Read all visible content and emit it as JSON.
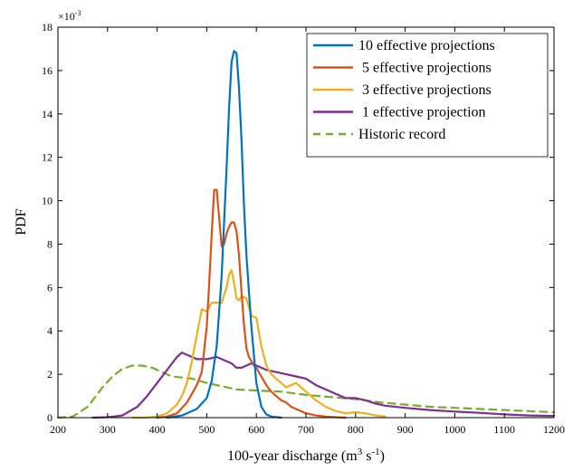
{
  "chart_data": {
    "type": "line",
    "xlabel": "100-year discharge (m",
    "xlabel_sup1": "3",
    "xlabel_mid": " s",
    "xlabel_sup2": "-1",
    "xlabel_end": ")",
    "ylabel": "PDF",
    "y_multiplier": "×10",
    "y_multiplier_exp": "-3",
    "xlim": [
      200,
      1200
    ],
    "ylim": [
      0,
      18
    ],
    "xticks": [
      "200",
      "300",
      "400",
      "500",
      "600",
      "700",
      "800",
      "900",
      "1000",
      "1100",
      "1200"
    ],
    "yticks": [
      "0",
      "2",
      "4",
      "6",
      "8",
      "10",
      "12",
      "14",
      "16",
      "18"
    ],
    "grid": false,
    "legend_position": "top-right",
    "series": [
      {
        "name": "10 effective projections",
        "color": "#0072BD",
        "style": "solid",
        "x": [
          420,
          450,
          480,
          500,
          510,
          520,
          530,
          540,
          545,
          550,
          555,
          560,
          565,
          570,
          575,
          580,
          590,
          600,
          610,
          620,
          630,
          650
        ],
        "y": [
          0,
          0.1,
          0.4,
          0.9,
          1.7,
          3.3,
          6.5,
          11.5,
          14.3,
          16.4,
          16.9,
          16.8,
          15.2,
          12.8,
          9.8,
          7.5,
          4.2,
          1.6,
          0.5,
          0.15,
          0.05,
          0
        ]
      },
      {
        "name": " 5 effective projections",
        "color": "#D95319",
        "style": "solid",
        "x": [
          400,
          420,
          440,
          460,
          470,
          480,
          490,
          500,
          505,
          510,
          515,
          520,
          525,
          530,
          535,
          540,
          545,
          550,
          555,
          560,
          565,
          570,
          575,
          580,
          585,
          590,
          595,
          600,
          610,
          620,
          630,
          640,
          650,
          660,
          670,
          680,
          690,
          700,
          720,
          740,
          760,
          780
        ],
        "y": [
          0,
          0.05,
          0.2,
          0.7,
          1.1,
          1.5,
          2.1,
          4.2,
          6.2,
          8.5,
          10.5,
          10.5,
          9.2,
          7.9,
          8.0,
          8.5,
          8.8,
          9.0,
          9.0,
          8.6,
          7.5,
          5.8,
          4.3,
          3.2,
          2.8,
          2.6,
          2.4,
          2.3,
          1.9,
          1.5,
          1.2,
          1.0,
          0.8,
          0.7,
          0.5,
          0.4,
          0.3,
          0.2,
          0.1,
          0.05,
          0.02,
          0
        ]
      },
      {
        "name": " 3 effective projections",
        "color": "#EDB120",
        "style": "solid",
        "x": [
          350,
          380,
          400,
          420,
          440,
          450,
          460,
          470,
          480,
          490,
          500,
          510,
          520,
          530,
          540,
          545,
          550,
          555,
          560,
          565,
          570,
          580,
          590,
          600,
          610,
          620,
          630,
          640,
          660,
          680,
          700,
          720,
          740,
          760,
          780,
          800,
          820,
          840,
          860
        ],
        "y": [
          0,
          0.01,
          0.05,
          0.2,
          0.6,
          1.0,
          1.6,
          2.6,
          3.8,
          5.0,
          4.9,
          5.3,
          5.3,
          5.3,
          6.0,
          6.6,
          6.8,
          6.2,
          5.5,
          5.4,
          5.6,
          5.5,
          4.7,
          4.6,
          3.3,
          2.4,
          2.0,
          1.8,
          1.4,
          1.6,
          1.2,
          0.8,
          0.5,
          0.3,
          0.2,
          0.25,
          0.2,
          0.1,
          0.05
        ]
      },
      {
        "name": " 1 effective projection",
        "color": "#7E2F8E",
        "style": "solid",
        "x": [
          270,
          300,
          330,
          360,
          380,
          400,
          420,
          440,
          450,
          460,
          470,
          480,
          500,
          520,
          540,
          550,
          560,
          570,
          580,
          590,
          600,
          620,
          640,
          660,
          680,
          700,
          720,
          740,
          760,
          780,
          800,
          820,
          840,
          860,
          900,
          950,
          1000,
          1050,
          1100,
          1150,
          1200
        ],
        "y": [
          0,
          0.02,
          0.1,
          0.5,
          1.0,
          1.6,
          2.2,
          2.8,
          3.0,
          2.9,
          2.8,
          2.7,
          2.7,
          2.8,
          2.6,
          2.5,
          2.3,
          2.3,
          2.4,
          2.5,
          2.4,
          2.2,
          2.1,
          2.0,
          1.9,
          1.8,
          1.5,
          1.3,
          1.1,
          0.9,
          0.9,
          0.8,
          0.65,
          0.55,
          0.45,
          0.35,
          0.28,
          0.22,
          0.15,
          0.1,
          0.08
        ]
      },
      {
        "name": "Historic record",
        "color": "#77AC30",
        "style": "dashed",
        "x": [
          200,
          230,
          260,
          290,
          310,
          330,
          350,
          370,
          390,
          410,
          430,
          450,
          470,
          500,
          530,
          560,
          600,
          650,
          700,
          750,
          800,
          850,
          900,
          950,
          1000,
          1050,
          1100,
          1150,
          1200
        ],
        "y": [
          0,
          0.05,
          0.5,
          1.4,
          1.9,
          2.25,
          2.4,
          2.4,
          2.3,
          2.1,
          1.9,
          1.85,
          1.8,
          1.6,
          1.45,
          1.3,
          1.25,
          1.2,
          1.05,
          0.95,
          0.85,
          0.7,
          0.6,
          0.5,
          0.45,
          0.4,
          0.35,
          0.3,
          0.25
        ]
      }
    ]
  }
}
